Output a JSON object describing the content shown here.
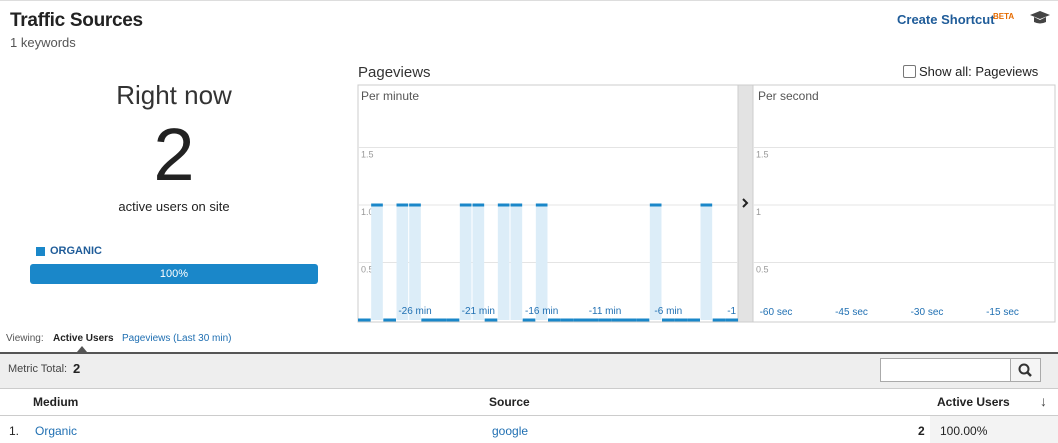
{
  "header": {
    "title": "Traffic Sources",
    "subtitle": "1 keywords",
    "shortcut": "Create Shortcut",
    "badge": "BETA"
  },
  "summary": {
    "heading": "Right now",
    "count": 2,
    "caption": "active users on site",
    "legend": "ORGANIC",
    "share": "100%"
  },
  "chart": {
    "title": "Pageviews",
    "toggle": "Show all: Pageviews",
    "per_minute": {
      "label": "Per minute",
      "categories": [
        null,
        null,
        null,
        null,
        "-26 min",
        null,
        null,
        null,
        null,
        "-21 min",
        null,
        null,
        null,
        null,
        "-16 min",
        null,
        null,
        null,
        null,
        "-11 min",
        null,
        null,
        null,
        null,
        "-6 min",
        null,
        null,
        null,
        null,
        "-1"
      ],
      "values": [
        0,
        1,
        0,
        1,
        1,
        0,
        0,
        0,
        1,
        1,
        0,
        1,
        1,
        0,
        1,
        0,
        0,
        0,
        0,
        0,
        0,
        0,
        0,
        1,
        0,
        0,
        0,
        1,
        0,
        0
      ],
      "ylim": [
        0,
        2
      ],
      "yticks": [
        0.5,
        {
          "value": 1,
          "label": "1.0"
        },
        1.5
      ]
    },
    "per_second": {
      "label": "Per second",
      "categories": [
        "-60 sec",
        "-45 sec",
        "-30 sec",
        "-15 sec"
      ],
      "ylim": [
        0,
        2
      ],
      "yticks": [
        0.5,
        1,
        1.5
      ]
    }
  },
  "viewing": {
    "label": "Viewing:",
    "tabs": [
      "Active Users",
      "Pageviews (Last 30 min)"
    ]
  },
  "table": {
    "metric_label": "Metric Total:",
    "metric_value": 2,
    "columns": [
      "Medium",
      "Source",
      "Active Users"
    ],
    "rows": [
      [
        "1.",
        "Organic",
        "google",
        2,
        "100.00%"
      ]
    ]
  }
}
